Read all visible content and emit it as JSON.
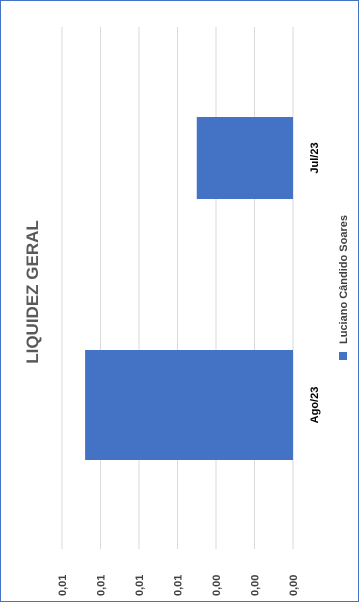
{
  "chart_data": {
    "type": "bar",
    "orientation": "horizontal",
    "title": "LIQUIDEZ GERAL",
    "categories": [
      "Jul/23",
      "Ago/23"
    ],
    "series": [
      {
        "name": "Luciano Cândido Soares",
        "values": [
          0.0025,
          0.0054
        ]
      }
    ],
    "value_ticks": [
      "0,00",
      "0,00",
      "0,00",
      "0,01",
      "0,01",
      "0,01",
      "0,01"
    ],
    "xlim": [
      0,
      0.006
    ],
    "grid": true,
    "legend_position": "right",
    "colors": {
      "series": "#4472c4",
      "grid": "#d9d9d9",
      "frame": "#4472c4"
    }
  }
}
